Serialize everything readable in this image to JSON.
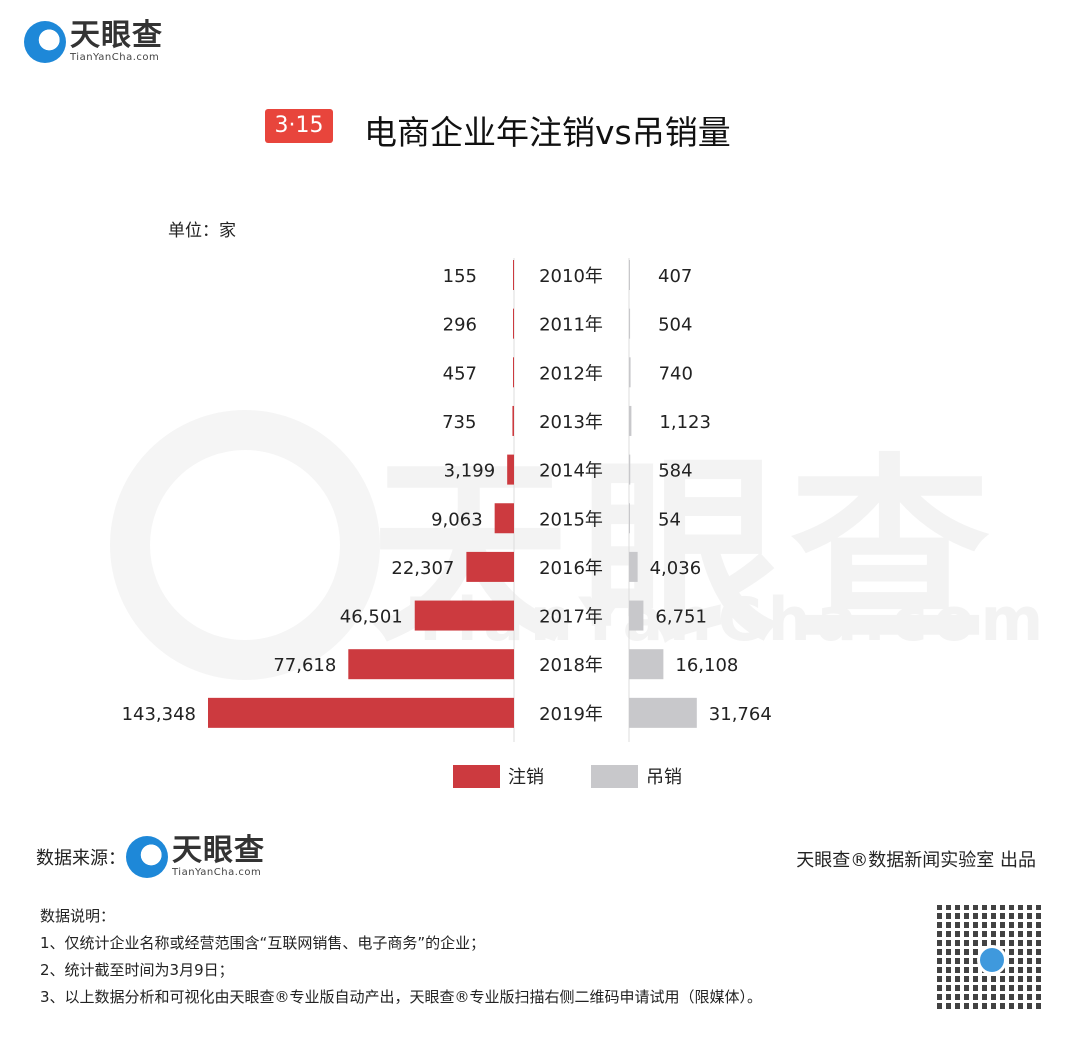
{
  "header": {
    "logo_cn": "天眼查",
    "logo_en": "TianYanCha.com",
    "badge": "3·15",
    "title": "电商企业年注销vs吊销量"
  },
  "watermark": {
    "cn": "天眼查",
    "en": "TianYanCha.com"
  },
  "chart_data": {
    "type": "bar",
    "orientation": "horizontal-butterfly",
    "title": "电商企业年注销vs吊销量",
    "unit_label": "单位：家",
    "categories": [
      "2010年",
      "2011年",
      "2012年",
      "2013年",
      "2014年",
      "2015年",
      "2016年",
      "2017年",
      "2018年",
      "2019年"
    ],
    "series": [
      {
        "name": "注销",
        "color": "#cc3a3f",
        "side": "left",
        "values": [
          155,
          296,
          457,
          735,
          3199,
          9063,
          22307,
          46501,
          77618,
          143348
        ]
      },
      {
        "name": "吊销",
        "color": "#c8c8cb",
        "side": "right",
        "values": [
          407,
          504,
          740,
          1123,
          584,
          54,
          4036,
          6751,
          16108,
          31764
        ]
      }
    ],
    "legend": "bottom",
    "grid": false
  },
  "footer": {
    "source_label": "数据来源：",
    "credit": "天眼查®数据新闻实验室 出品",
    "notes_title": "数据说明：",
    "notes": [
      "1、仅统计企业名称或经营范围含“互联网销售、电子商务”的企业；",
      "2、统计截至时间为3月9日；",
      "3、以上数据分析和可视化由天眼查®专业版自动产出，天眼查®专业版扫描右侧二维码申请试用（限媒体）。"
    ]
  }
}
